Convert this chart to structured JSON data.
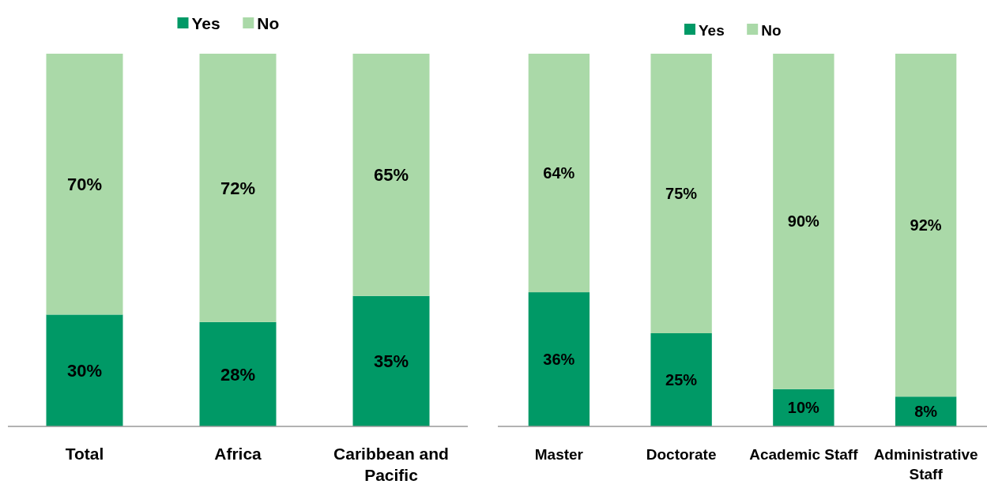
{
  "chart_data": [
    {
      "type": "bar",
      "stacked": true,
      "legend": "top",
      "categories": [
        "Total",
        "Africa",
        "Caribbean and Pacific"
      ],
      "series": [
        {
          "name": "Yes",
          "color": "#009966",
          "values": [
            30,
            28,
            35
          ],
          "value_labels": [
            "30%",
            "28%",
            "35%"
          ]
        },
        {
          "name": "No",
          "color": "#aad9a8",
          "values": [
            70,
            72,
            65
          ],
          "value_labels": [
            "70%",
            "72%",
            "65%"
          ]
        }
      ]
    },
    {
      "type": "bar",
      "stacked": true,
      "legend": "top",
      "categories": [
        "Master",
        "Doctorate",
        "Academic Staff",
        "Administrative Staff"
      ],
      "series": [
        {
          "name": "Yes",
          "color": "#009966",
          "values": [
            36,
            25,
            10,
            8
          ],
          "value_labels": [
            "36%",
            "25%",
            "10%",
            "8%"
          ]
        },
        {
          "name": "No",
          "color": "#aad9a8",
          "values": [
            64,
            75,
            90,
            92
          ],
          "value_labels": [
            "64%",
            "75%",
            "90%",
            "92%"
          ]
        }
      ]
    }
  ]
}
